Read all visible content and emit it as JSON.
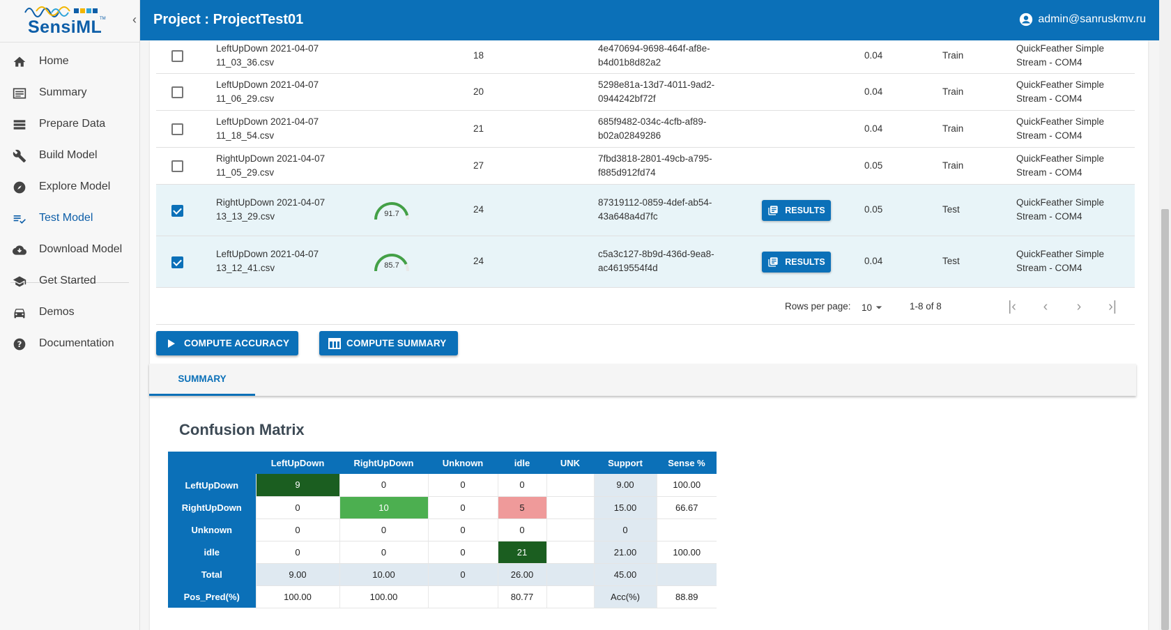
{
  "brand": {
    "name": "SensiML",
    "tm": "TM"
  },
  "nav": [
    {
      "label": "Home",
      "icon": "home-icon"
    },
    {
      "label": "Summary",
      "icon": "list-icon"
    },
    {
      "label": "Prepare Data",
      "icon": "storage-icon"
    },
    {
      "label": "Build Model",
      "icon": "wrench-icon"
    },
    {
      "label": "Explore Model",
      "icon": "compass-icon"
    },
    {
      "label": "Test Model",
      "icon": "playlist-check-icon"
    },
    {
      "label": "Download Model",
      "icon": "cloud-download-icon"
    },
    {
      "label": "Get Started",
      "icon": "school-icon"
    },
    {
      "label": "Demos",
      "icon": "car-icon"
    },
    {
      "label": "Documentation",
      "icon": "help-icon"
    }
  ],
  "header": {
    "title": "Project : ProjectTest01",
    "user": "admin@sanruskmv.ru"
  },
  "rows": [
    {
      "name1": "LeftUpDown 2021-04-07",
      "name2": "11_03_36.csv",
      "count": "18",
      "uuid1": "4e470694-9698-464f-af8e-",
      "uuid2": "b4d01b8d82a2",
      "size": "0.04",
      "set": "Train",
      "src1": "QuickFeather Simple",
      "src2": "Stream - COM4",
      "checked": false
    },
    {
      "name1": "LeftUpDown 2021-04-07",
      "name2": "11_06_29.csv",
      "count": "20",
      "uuid1": "5298e81a-13d7-4011-9ad2-",
      "uuid2": "0944242bf72f",
      "size": "0.04",
      "set": "Train",
      "src1": "QuickFeather Simple",
      "src2": "Stream - COM4",
      "checked": false
    },
    {
      "name1": "LeftUpDown 2021-04-07",
      "name2": "11_18_54.csv",
      "count": "21",
      "uuid1": "685f9482-034c-4cfb-af89-",
      "uuid2": "b02a02849286",
      "size": "0.04",
      "set": "Train",
      "src1": "QuickFeather Simple",
      "src2": "Stream - COM4",
      "checked": false
    },
    {
      "name1": "RightUpDown 2021-04-07",
      "name2": "11_05_29.csv",
      "count": "27",
      "uuid1": "7fbd3818-2801-49cb-a795-",
      "uuid2": "f885d912fd74",
      "size": "0.05",
      "set": "Train",
      "src1": "QuickFeather Simple",
      "src2": "Stream - COM4",
      "checked": false
    },
    {
      "name1": "RightUpDown 2021-04-07",
      "name2": "13_13_29.csv",
      "accuracy": "91.7",
      "accuracy_value": 91.7,
      "count": "24",
      "uuid1": "87319112-0859-4def-ab54-",
      "uuid2": "43a648a4d7fc",
      "results": "RESULTS",
      "size": "0.05",
      "set": "Test",
      "src1": "QuickFeather Simple",
      "src2": "Stream - COM4",
      "checked": true
    },
    {
      "name1": "LeftUpDown 2021-04-07",
      "name2": "13_12_41.csv",
      "accuracy": "85.7",
      "accuracy_value": 85.7,
      "count": "24",
      "uuid1": "c5a3c127-8b9d-436d-9ea8-",
      "uuid2": "ac4619554f4d",
      "results": "RESULTS",
      "size": "0.04",
      "set": "Test",
      "src1": "QuickFeather Simple",
      "src2": "Stream - COM4",
      "checked": true
    }
  ],
  "pager": {
    "rows_per_page_label": "Rows per page:",
    "rows_per_page": "10",
    "range": "1-8 of 8"
  },
  "buttons": {
    "compute_accuracy": "COMPUTE ACCURACY",
    "compute_summary": "COMPUTE SUMMARY"
  },
  "tabs": {
    "summary": "SUMMARY"
  },
  "confusion": {
    "title": "Confusion Matrix",
    "headers": [
      "",
      "LeftUpDown",
      "RightUpDown",
      "Unknown",
      "idle",
      "UNK",
      "Support",
      "Sense %"
    ],
    "rows": [
      {
        "label": "LeftUpDown",
        "cells": [
          "9",
          "0",
          "0",
          "0",
          "",
          "9.00",
          "100.00"
        ]
      },
      {
        "label": "RightUpDown",
        "cells": [
          "0",
          "10",
          "0",
          "5",
          "",
          "15.00",
          "66.67"
        ]
      },
      {
        "label": "Unknown",
        "cells": [
          "0",
          "0",
          "0",
          "0",
          "",
          "0",
          ""
        ]
      },
      {
        "label": "idle",
        "cells": [
          "0",
          "0",
          "0",
          "21",
          "",
          "21.00",
          "100.00"
        ]
      },
      {
        "label": "Total",
        "cells": [
          "9.00",
          "10.00",
          "0",
          "26.00",
          "",
          "45.00",
          ""
        ]
      },
      {
        "label": "Pos_Pred(%)",
        "cells": [
          "100.00",
          "100.00",
          "",
          "80.77",
          "",
          "Acc(%)",
          "88.89"
        ]
      }
    ]
  },
  "colors": {
    "primary": "#0b70b8",
    "sidebar_bg": "#f7f7f7",
    "dark_green": "#1b5e20",
    "green": "#4caf50",
    "red": "#ef9a9a",
    "support_bg": "#dfe9f1"
  }
}
